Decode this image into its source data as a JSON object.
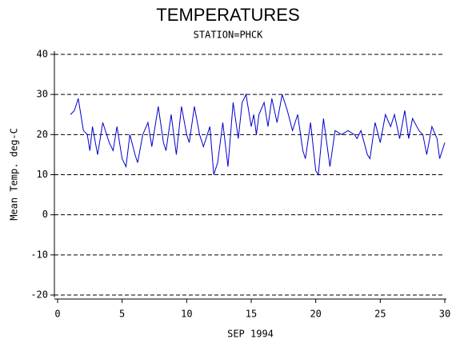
{
  "chart_data": {
    "type": "line",
    "title": "TEMPERATURES",
    "subtitle": "STATION=PHCK",
    "x_label": "SEP 1994",
    "y_label": "Mean Temp. deg-C",
    "x": [
      1,
      1.3,
      1.6,
      1.8,
      2,
      2.3,
      2.5,
      2.7,
      3.1,
      3.5,
      4,
      4.3,
      4.6,
      5,
      5.3,
      5.6,
      6,
      6.2,
      6.6,
      7,
      7.3,
      7.8,
      8.2,
      8.4,
      8.8,
      9.2,
      9.6,
      10,
      10.2,
      10.6,
      11,
      11.3,
      11.8,
      12.1,
      12.4,
      12.8,
      13.2,
      13.6,
      14,
      14.3,
      14.6,
      15,
      15.2,
      15.4,
      15.6,
      16,
      16.3,
      16.6,
      17,
      17.4,
      17.8,
      18.2,
      18.6,
      19,
      19.2,
      19.6,
      20,
      20.2,
      20.6,
      21.1,
      21.5,
      22,
      22.5,
      23,
      23.2,
      23.5,
      24,
      24.2,
      24.6,
      25,
      25.4,
      25.8,
      26.1,
      26.5,
      26.9,
      27.2,
      27.5,
      28,
      28.3,
      28.6,
      29,
      29.4,
      29.6,
      30
    ],
    "series": [
      {
        "name": "Mean Temp",
        "color": "#0000cc",
        "values": [
          25,
          26,
          29,
          25,
          21,
          20,
          16,
          22,
          15,
          23,
          18,
          16,
          22,
          14,
          12,
          20,
          15,
          13,
          20,
          23,
          17,
          27,
          18,
          16,
          25,
          15,
          27,
          20,
          18,
          27,
          20,
          17,
          22,
          10,
          13,
          23,
          12,
          28,
          19,
          28,
          30,
          22,
          25,
          20,
          25,
          28,
          22,
          29,
          23,
          30,
          26,
          21,
          25,
          16,
          14,
          23,
          11,
          10,
          24,
          12,
          21,
          20,
          21,
          20,
          19,
          21,
          15,
          14,
          23,
          18,
          25,
          22,
          25,
          19,
          26,
          19,
          24,
          21,
          20,
          15,
          22,
          19,
          14,
          18
        ]
      }
    ],
    "xlim": [
      0,
      30
    ],
    "xticks": [
      0,
      5,
      10,
      15,
      20,
      25,
      30
    ],
    "ylim": [
      -20,
      40
    ],
    "yticks": [
      -20,
      -10,
      0,
      10,
      20,
      30,
      40
    ],
    "grid": true
  }
}
